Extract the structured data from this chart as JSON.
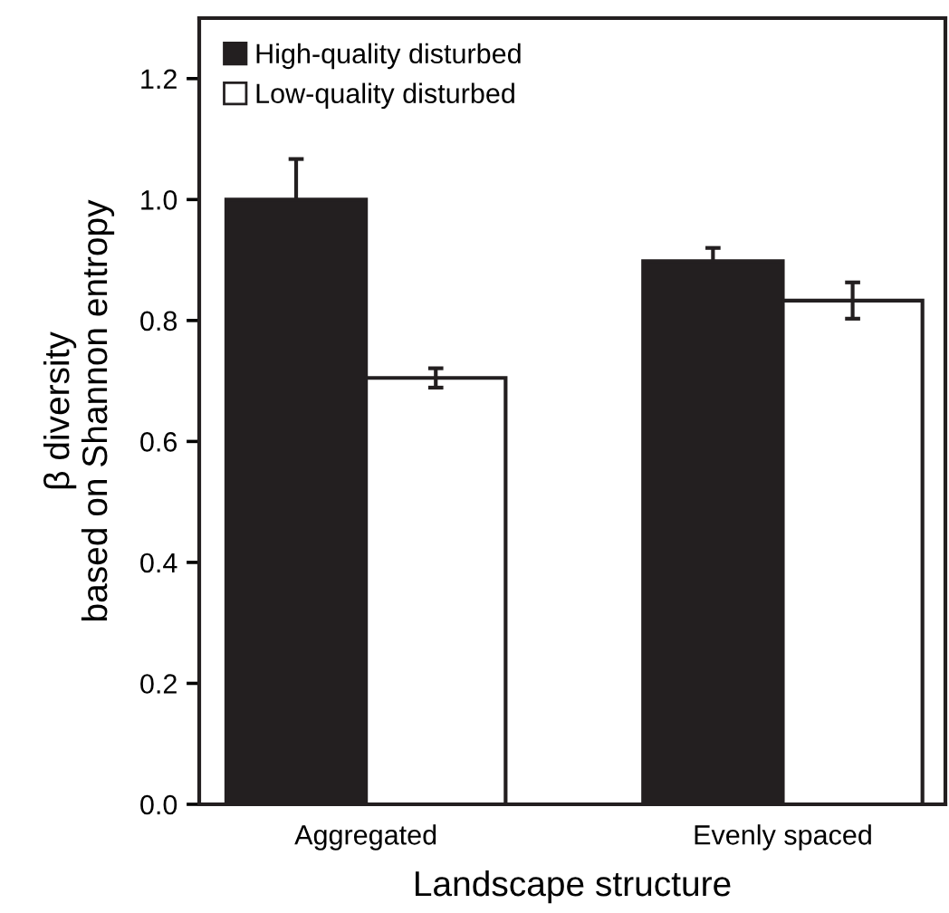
{
  "chart_data": {
    "type": "bar",
    "xlabel": "Landscape structure",
    "ylabel": "β diversity\nbased on Shannon entropy",
    "categories": [
      "Aggregated",
      "Evenly spaced"
    ],
    "series": [
      {
        "name": "High-quality disturbed",
        "color": "#231f20",
        "values": [
          1.0,
          0.898
        ],
        "errors": [
          0.067,
          0.022
        ]
      },
      {
        "name": "Low-quality disturbed",
        "color": "#ffffff",
        "values": [
          0.705,
          0.833
        ],
        "errors": [
          0.016,
          0.03
        ]
      }
    ],
    "ylim": [
      0,
      1.3
    ],
    "yticks": [
      {
        "value": 0,
        "label": "0.0"
      },
      0.2,
      0.4,
      0.6,
      0.8,
      {
        "value": 1,
        "label": "1.0"
      },
      1.2
    ],
    "legend": "top left",
    "grid": false
  }
}
